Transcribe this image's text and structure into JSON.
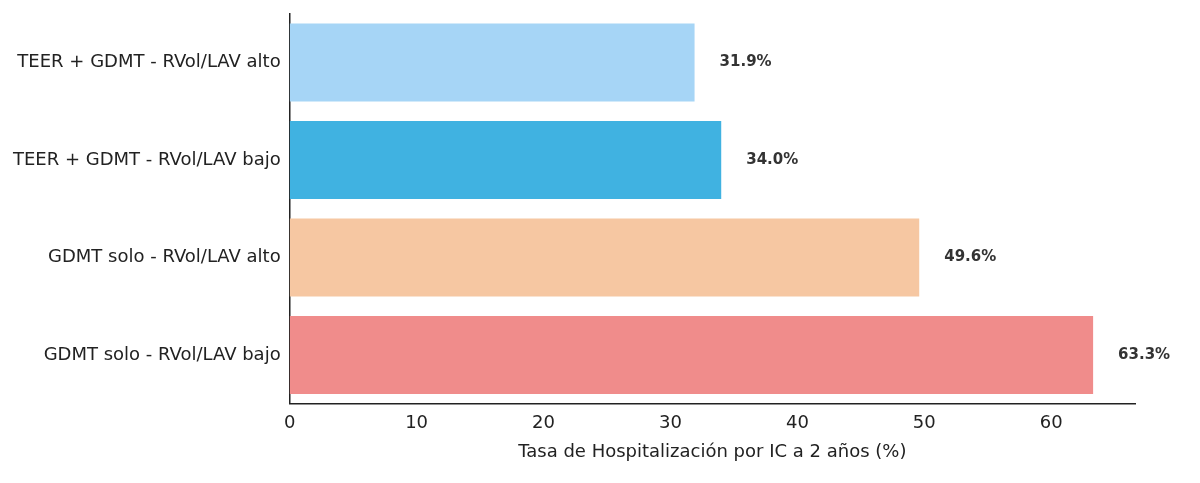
{
  "chart_data": {
    "type": "bar",
    "orientation": "horizontal",
    "xlabel": "Tasa de Hospitalización por IC a 2 años (%)",
    "categories": [
      "TEER + GDMT - RVol/LAV alto",
      "TEER + GDMT - RVol/LAV bajo",
      "GDMT solo - RVol/LAV alto",
      "GDMT solo - RVol/LAV bajo"
    ],
    "values": [
      31.9,
      34.0,
      49.6,
      63.3
    ],
    "colors": [
      "#a6d5f6",
      "#40b2e1",
      "#f6c7a2",
      "#f08c8b"
    ],
    "value_labels": [
      "31.9%",
      "34.0%",
      "49.6%",
      "63.3%"
    ],
    "xlim": [
      0,
      66.6
    ],
    "xticks": [
      0,
      10,
      20,
      30,
      40,
      50,
      60
    ],
    "grid": false,
    "legend": false
  }
}
